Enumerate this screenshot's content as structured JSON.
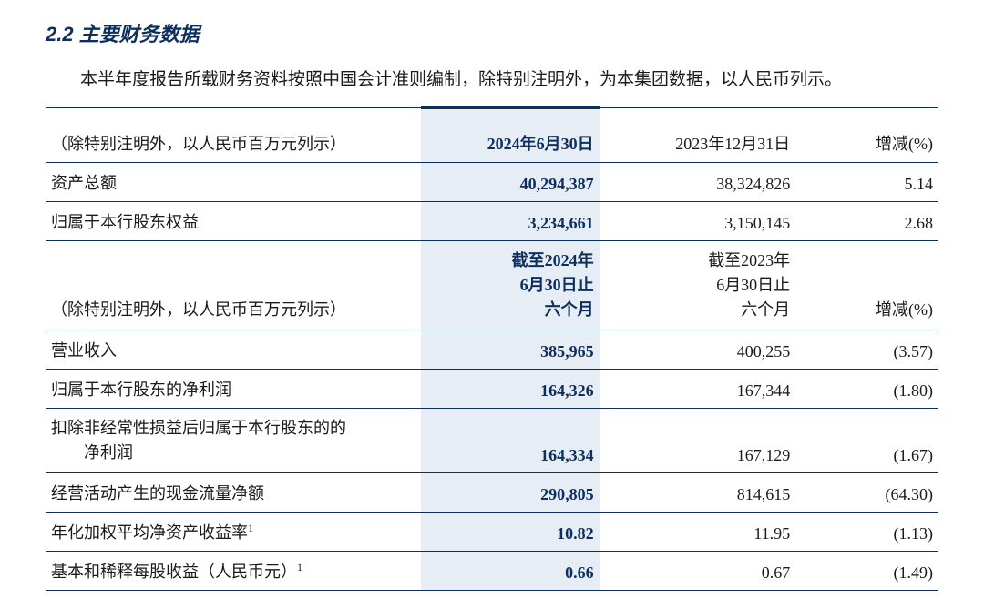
{
  "heading": "2.2 主要财务数据",
  "intro": "本半年度报告所载财务资料按照中国会计准则编制，除特别注明外，为本集团数据，以人民币列示。",
  "colors": {
    "heading": "#0d2f5e",
    "highlight_bg": "#e6edf4",
    "rule": "#0d2f5e",
    "text": "#1a1a1a"
  },
  "header1": {
    "label": "（除特别注明外，以人民币百万元列示）",
    "cur": "2024年6月30日",
    "prev": "2023年12月31日",
    "chg": "增减(%)"
  },
  "rows1": [
    {
      "label": "资产总额",
      "cur": "40,294,387",
      "prev": "38,324,826",
      "chg": "5.14"
    },
    {
      "label": "归属于本行股东权益",
      "cur": "3,234,661",
      "prev": "3,150,145",
      "chg": "2.68"
    }
  ],
  "header2": {
    "label": "（除特别注明外，以人民币百万元列示）",
    "cur": "截至2024年\n6月30日止\n六个月",
    "prev": "截至2023年\n6月30日止\n六个月",
    "chg": "增减(%)"
  },
  "rows2": [
    {
      "label": "营业收入",
      "cur": "385,965",
      "prev": "400,255",
      "chg": "(3.57)"
    },
    {
      "label": "归属于本行股东的净利润",
      "cur": "164,326",
      "prev": "167,344",
      "chg": "(1.80)"
    },
    {
      "label_line1": "扣除非经常性损益后归属于本行股东的的",
      "label_line2": "净利润",
      "cur": "164,334",
      "prev": "167,129",
      "chg": "(1.67)"
    },
    {
      "label": "经营活动产生的现金流量净额",
      "cur": "290,805",
      "prev": "814,615",
      "chg": "(64.30)"
    },
    {
      "label": "年化加权平均净资产收益率",
      "sup": "1",
      "cur": "10.82",
      "prev": "11.95",
      "chg": "(1.13)"
    },
    {
      "label": "基本和稀释每股收益（人民币元）",
      "sup": "1",
      "cur": "0.66",
      "prev": "0.67",
      "chg": "(1.49)"
    }
  ]
}
